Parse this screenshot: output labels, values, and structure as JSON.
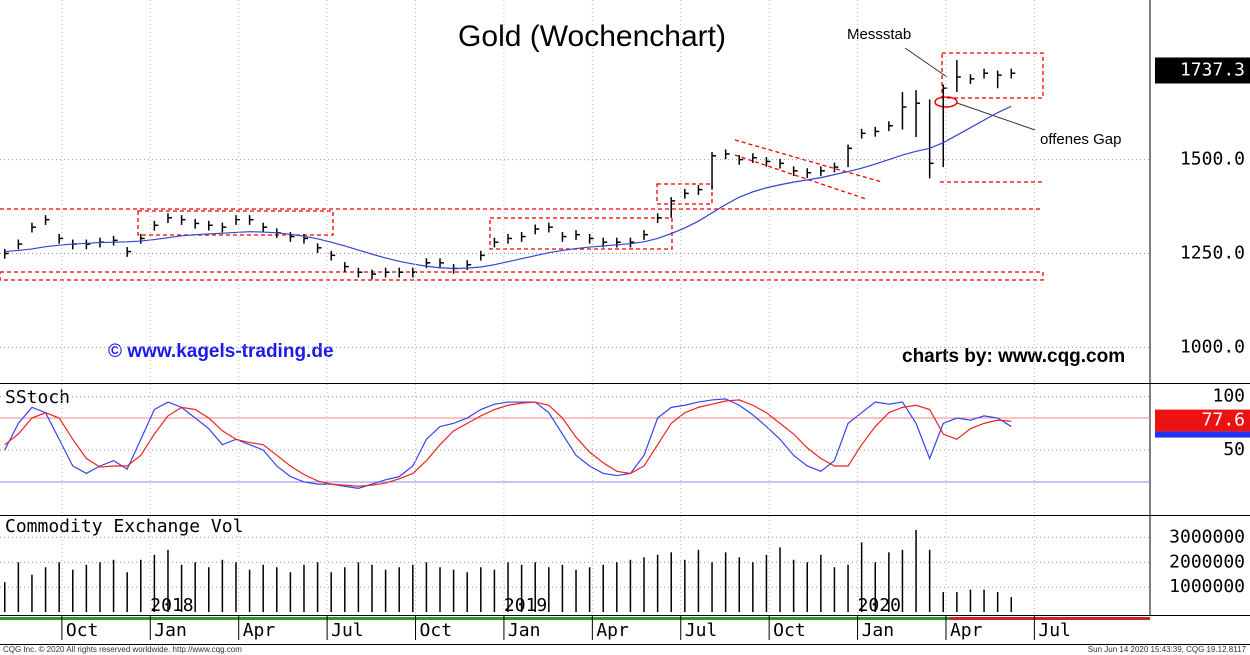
{
  "chart_data": [
    {
      "type": "hlc",
      "title": "Gold (Wochenchart)",
      "x": [
        0,
        2,
        4,
        6,
        8,
        10,
        12,
        14,
        16,
        18,
        20,
        22,
        24,
        26,
        28,
        30,
        32,
        34,
        36,
        38,
        40,
        42,
        44,
        46,
        48,
        50,
        52,
        54,
        56,
        58,
        60,
        62,
        64,
        66,
        68,
        70,
        72,
        74,
        76,
        78,
        80,
        82,
        84,
        86,
        88,
        90,
        92,
        94,
        96,
        98,
        100,
        102,
        104,
        106,
        108,
        110,
        112,
        114,
        116,
        118,
        120,
        122,
        124,
        126,
        128,
        130,
        132,
        134,
        136,
        138,
        140,
        142,
        144,
        146,
        148
      ],
      "high": [
        1262,
        1287,
        1332,
        1352,
        1302,
        1287,
        1287,
        1292,
        1297,
        1267,
        1302,
        1337,
        1357,
        1352,
        1342,
        1337,
        1332,
        1352,
        1352,
        1332,
        1317,
        1307,
        1302,
        1277,
        1257,
        1227,
        1212,
        1207,
        1212,
        1212,
        1212,
        1237,
        1237,
        1222,
        1232,
        1257,
        1292,
        1302,
        1307,
        1327,
        1332,
        1307,
        1312,
        1302,
        1292,
        1292,
        1292,
        1312,
        1357,
        1400,
        1422,
        1432,
        1520,
        1527,
        1512,
        1517,
        1507,
        1502,
        1482,
        1477,
        1482,
        1492,
        1540,
        1582,
        1587,
        1602,
        1680,
        1685,
        1660,
        1700,
        1765,
        1727,
        1742,
        1737,
        1742
      ],
      "low": [
        1236,
        1261,
        1306,
        1326,
        1276,
        1261,
        1261,
        1266,
        1271,
        1241,
        1276,
        1311,
        1331,
        1326,
        1316,
        1311,
        1306,
        1326,
        1326,
        1306,
        1291,
        1281,
        1276,
        1251,
        1231,
        1201,
        1186,
        1181,
        1186,
        1186,
        1186,
        1211,
        1211,
        1196,
        1206,
        1231,
        1266,
        1276,
        1281,
        1301,
        1306,
        1281,
        1286,
        1276,
        1266,
        1266,
        1266,
        1286,
        1331,
        1345,
        1396,
        1406,
        1420,
        1501,
        1486,
        1491,
        1481,
        1476,
        1456,
        1451,
        1456,
        1466,
        1480,
        1556,
        1561,
        1576,
        1580,
        1560,
        1450,
        1480,
        1680,
        1701,
        1716,
        1690,
        1716
      ],
      "close": [
        1250,
        1275,
        1320,
        1340,
        1290,
        1275,
        1275,
        1280,
        1285,
        1255,
        1290,
        1325,
        1345,
        1340,
        1330,
        1325,
        1320,
        1340,
        1340,
        1320,
        1305,
        1295,
        1290,
        1265,
        1245,
        1215,
        1200,
        1195,
        1200,
        1200,
        1200,
        1225,
        1225,
        1210,
        1220,
        1245,
        1280,
        1290,
        1295,
        1315,
        1320,
        1295,
        1300,
        1290,
        1280,
        1280,
        1280,
        1300,
        1345,
        1390,
        1410,
        1420,
        1510,
        1515,
        1500,
        1505,
        1495,
        1490,
        1470,
        1465,
        1470,
        1480,
        1530,
        1570,
        1575,
        1590,
        1640,
        1650,
        1490,
        1690,
        1720,
        1715,
        1730,
        1725,
        1730
      ],
      "color": "#000000",
      "ma": {
        "values": [
          1255,
          1258,
          1262,
          1268,
          1272,
          1275,
          1277,
          1279,
          1280,
          1281,
          1283,
          1287,
          1292,
          1297,
          1300,
          1302,
          1304,
          1306,
          1308,
          1307,
          1305,
          1301,
          1296,
          1289,
          1280,
          1270,
          1259,
          1248,
          1238,
          1229,
          1222,
          1216,
          1212,
          1210,
          1211,
          1214,
          1220,
          1228,
          1236,
          1244,
          1252,
          1258,
          1263,
          1267,
          1270,
          1273,
          1276,
          1281,
          1290,
          1303,
          1318,
          1336,
          1358,
          1380,
          1400,
          1414,
          1425,
          1433,
          1440,
          1446,
          1452,
          1460,
          1468,
          1477,
          1488,
          1500,
          1512,
          1522,
          1530,
          1545,
          1565,
          1585,
          1605,
          1625,
          1642
        ],
        "color": "#3344cc"
      },
      "xlim": [
        -0.7,
        168.4
      ],
      "ylim": [
        905,
        1925
      ],
      "yticks": [
        {
          "value": 1000,
          "label": "1000.0"
        },
        {
          "value": 1250,
          "label": "1250.0"
        },
        {
          "value": 1500,
          "label": "1500.0"
        }
      ],
      "grid": true,
      "last_value": {
        "value": 1737.3,
        "label": "1737.3"
      },
      "annotations": [
        "Messstab",
        "offenes Gap",
        "© www.kagels-trading.de",
        "charts by: www.cqg.com"
      ]
    },
    {
      "type": "line",
      "title": "SStoch",
      "x": [
        0,
        2,
        4,
        6,
        8,
        10,
        12,
        14,
        16,
        18,
        20,
        22,
        24,
        26,
        28,
        30,
        32,
        34,
        36,
        38,
        40,
        42,
        44,
        46,
        48,
        50,
        52,
        54,
        56,
        58,
        60,
        62,
        64,
        66,
        68,
        70,
        72,
        74,
        76,
        78,
        80,
        82,
        84,
        86,
        88,
        90,
        92,
        94,
        96,
        98,
        100,
        102,
        104,
        106,
        108,
        110,
        112,
        114,
        116,
        118,
        120,
        122,
        124,
        126,
        128,
        130,
        132,
        134,
        136,
        138,
        140,
        142,
        144,
        146,
        148
      ],
      "series": [
        {
          "color": "#3344ee",
          "values": [
            50,
            75,
            90,
            85,
            60,
            35,
            28,
            35,
            40,
            32,
            60,
            88,
            95,
            90,
            80,
            70,
            55,
            60,
            55,
            50,
            35,
            25,
            20,
            18,
            18,
            16,
            14,
            18,
            22,
            25,
            35,
            60,
            72,
            75,
            80,
            88,
            93,
            95,
            95,
            95,
            85,
            65,
            45,
            35,
            28,
            26,
            28,
            45,
            80,
            90,
            92,
            95,
            97,
            98,
            92,
            83,
            72,
            60,
            45,
            35,
            30,
            40,
            75,
            85,
            95,
            93,
            95,
            75,
            42,
            75,
            80,
            78,
            82,
            80,
            72
          ]
        },
        {
          "color": "#ee2222",
          "values": [
            55,
            65,
            80,
            85,
            80,
            60,
            42,
            34,
            35,
            35,
            45,
            65,
            82,
            90,
            88,
            80,
            68,
            60,
            57,
            55,
            45,
            35,
            27,
            21,
            18,
            17,
            16,
            17,
            19,
            23,
            28,
            40,
            55,
            68,
            75,
            82,
            88,
            92,
            94,
            95,
            92,
            80,
            62,
            48,
            38,
            30,
            28,
            35,
            55,
            75,
            85,
            90,
            93,
            96,
            97,
            92,
            85,
            75,
            65,
            52,
            42,
            35,
            35,
            55,
            72,
            85,
            90,
            92,
            88,
            65,
            60,
            70,
            75,
            78,
            77
          ]
        }
      ],
      "hlines": [
        {
          "value": 80,
          "color": "#ee8888"
        },
        {
          "value": 20,
          "color": "#8888ee"
        }
      ],
      "xlim": [
        -0.7,
        168.4
      ],
      "ylim": [
        -11,
        111
      ],
      "yticks": [
        50,
        100
      ],
      "last_value": {
        "value": 77.6,
        "label": "77.6"
      }
    },
    {
      "type": "bar",
      "title": "Commodity Exchange Vol",
      "x": [
        0,
        2,
        4,
        6,
        8,
        10,
        12,
        14,
        16,
        18,
        20,
        22,
        24,
        26,
        28,
        30,
        32,
        34,
        36,
        38,
        40,
        42,
        44,
        46,
        48,
        50,
        52,
        54,
        56,
        58,
        60,
        62,
        64,
        66,
        68,
        70,
        72,
        74,
        76,
        78,
        80,
        82,
        84,
        86,
        88,
        90,
        92,
        94,
        96,
        98,
        100,
        102,
        104,
        106,
        108,
        110,
        112,
        114,
        116,
        118,
        120,
        122,
        124,
        126,
        128,
        130,
        132,
        134,
        136,
        138,
        140,
        142,
        144,
        146,
        148
      ],
      "values": [
        1200000,
        2000000,
        1500000,
        1800000,
        2000000,
        1700000,
        1900000,
        2000000,
        2100000,
        1600000,
        2100000,
        2300000,
        2500000,
        1900000,
        2000000,
        1800000,
        2100000,
        2000000,
        1700000,
        1900000,
        1800000,
        1600000,
        1900000,
        2000000,
        1600000,
        1800000,
        2000000,
        1900000,
        1700000,
        1800000,
        1900000,
        2000000,
        1800000,
        1700000,
        1600000,
        1800000,
        1700000,
        2000000,
        1900000,
        2000000,
        1800000,
        1900000,
        1700000,
        1800000,
        1900000,
        2000000,
        2100000,
        2200000,
        2300000,
        2400000,
        2100000,
        2500000,
        2000000,
        2400000,
        2200000,
        2000000,
        2300000,
        2600000,
        2100000,
        2000000,
        2300000,
        1800000,
        1900000,
        2800000,
        2000000,
        2400000,
        2500000,
        3300000,
        2500000,
        800000,
        800000,
        900000,
        900000,
        800000,
        600000
      ],
      "color": "#000000",
      "xlim": [
        -0.7,
        168.4
      ],
      "ylim": [
        0,
        3900000
      ],
      "yticks": [
        1000000,
        2000000,
        3000000
      ],
      "xticks": [
        {
          "value": 8.4,
          "label": "Oct"
        },
        {
          "value": 21.4,
          "label": "Jan"
        },
        {
          "value": 34.4,
          "label": "Apr"
        },
        {
          "value": 47.4,
          "label": "Jul"
        },
        {
          "value": 60.4,
          "label": "Oct"
        },
        {
          "value": 73.4,
          "label": "Jan"
        },
        {
          "value": 86.4,
          "label": "Apr"
        },
        {
          "value": 99.4,
          "label": "Jul"
        },
        {
          "value": 112.4,
          "label": "Oct"
        },
        {
          "value": 125.4,
          "label": "Jan"
        },
        {
          "value": 138.4,
          "label": "Apr"
        },
        {
          "value": 151.4,
          "label": "Jul"
        }
      ],
      "year_labels": [
        {
          "value": 21.4,
          "label": "2018"
        },
        {
          "value": 73.4,
          "label": "2019"
        },
        {
          "value": 125.4,
          "label": "2020"
        }
      ]
    }
  ],
  "footer": {
    "left": "CQG Inc. © 2020 All rights reserved worldwide. http://www.cqg.com",
    "right": "Sun Jun 14 2020 15:43:39, CQG 19.12.8117"
  }
}
